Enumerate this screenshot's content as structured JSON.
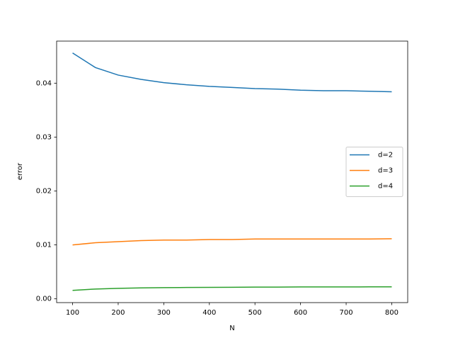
{
  "chart_data": {
    "type": "line",
    "x_label": "N",
    "y_label": "error",
    "x": [
      100,
      150,
      200,
      250,
      300,
      350,
      400,
      450,
      500,
      550,
      600,
      650,
      700,
      750,
      800
    ],
    "series": [
      {
        "name": "d=2",
        "color": "#1f77b4",
        "values": [
          0.0456,
          0.0429,
          0.0415,
          0.0407,
          0.0401,
          0.0397,
          0.0394,
          0.0392,
          0.039,
          0.0389,
          0.0387,
          0.0386,
          0.0386,
          0.0385,
          0.0384
        ]
      },
      {
        "name": "d=3",
        "color": "#ff7f0e",
        "values": [
          0.01,
          0.0104,
          0.0106,
          0.0108,
          0.0109,
          0.0109,
          0.011,
          0.011,
          0.0111,
          0.0111,
          0.0111,
          0.0111,
          0.0111,
          0.0111,
          0.01115
        ]
      },
      {
        "name": "d=4",
        "color": "#2ca02c",
        "values": [
          0.00157,
          0.00182,
          0.00195,
          0.00202,
          0.00207,
          0.00211,
          0.00213,
          0.00215,
          0.00217,
          0.00218,
          0.0022,
          0.0022,
          0.00221,
          0.00222,
          0.00223
        ]
      }
    ],
    "xlim": [
      65,
      835
    ],
    "ylim": [
      -0.0007,
      0.0478
    ],
    "xticks": [
      100,
      200,
      300,
      400,
      500,
      600,
      700,
      800
    ],
    "yticks": [
      {
        "value": 0,
        "label": "0.00"
      },
      0.01,
      0.02,
      0.03,
      0.04
    ],
    "grid": false,
    "legend": "center right"
  }
}
